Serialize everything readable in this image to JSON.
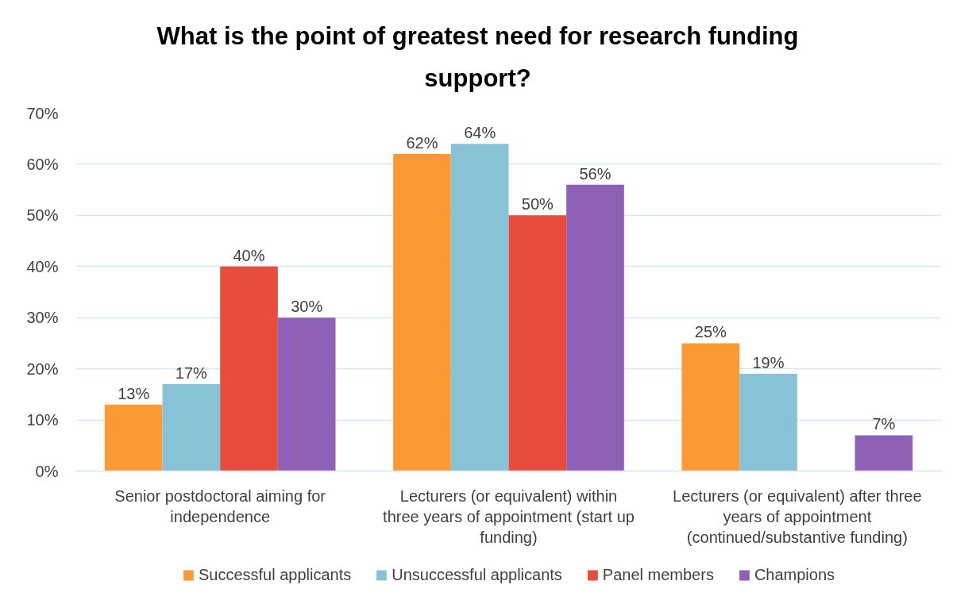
{
  "chart_data": {
    "type": "bar",
    "title": "What is the point of greatest need for research funding support?",
    "categories": [
      "Senior postdoctoral aiming for independence",
      "Lecturers (or equivalent) within three years of appointment (start up funding)",
      "Lecturers (or equivalent) after three years of appointment (continued/substantive funding)"
    ],
    "series": [
      {
        "name": "Successful applicants",
        "color": "#fd9935",
        "values": [
          13,
          62,
          25
        ],
        "value_labels": [
          "13%",
          "62%",
          "25%"
        ]
      },
      {
        "name": "Unsuccessful applicants",
        "color": "#87c2d7",
        "values": [
          17,
          64,
          19
        ],
        "value_labels": [
          "17%",
          "64%",
          "19%"
        ]
      },
      {
        "name": "Panel members",
        "color": "#e74c3c",
        "values": [
          40,
          50,
          null
        ],
        "value_labels": [
          "40%",
          "50%",
          null
        ]
      },
      {
        "name": "Champions",
        "color": "#8e61b7",
        "values": [
          30,
          56,
          7
        ],
        "value_labels": [
          "30%",
          "56%",
          "7%"
        ]
      }
    ],
    "ylim": [
      0,
      70
    ],
    "yticks": [
      {
        "value": 0,
        "label": "0%"
      },
      {
        "value": 10,
        "label": "10%"
      },
      {
        "value": 20,
        "label": "20%"
      },
      {
        "value": 30,
        "label": "30%"
      },
      {
        "value": 40,
        "label": "40%"
      },
      {
        "value": 50,
        "label": "50%"
      },
      {
        "value": 60,
        "label": "60%"
      },
      {
        "value": 70,
        "label": "70%"
      }
    ],
    "grid": "y",
    "legend": "bottom"
  }
}
